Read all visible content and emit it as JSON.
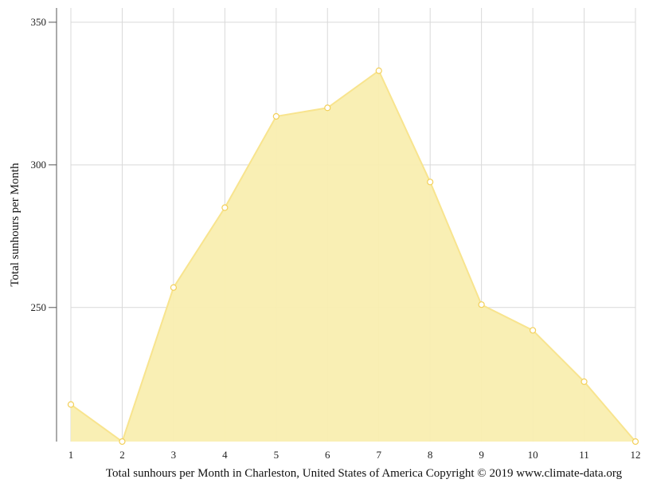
{
  "chart_data": {
    "type": "area",
    "x": [
      1,
      2,
      3,
      4,
      5,
      6,
      7,
      8,
      9,
      10,
      11,
      12
    ],
    "x_tick_labels": [
      "1",
      "2",
      "3",
      "4",
      "5",
      "6",
      "7",
      "8",
      "9",
      "10",
      "11",
      "12"
    ],
    "series": [
      {
        "values": [
          216,
          203,
          257,
          285,
          317,
          320,
          333,
          294,
          251,
          242,
          224,
          203
        ]
      }
    ],
    "ylabel": "Total sunhours per Month",
    "y_ticks": [
      250,
      300,
      350
    ],
    "y_tick_labels": [
      "250",
      "300",
      "350"
    ],
    "ylim": [
      203,
      355
    ],
    "xlim": [
      1,
      12
    ],
    "grid": true,
    "caption": "Total sunhours per Month in Charleston, United States of America Copyright © 2019 www.climate-data.org",
    "colors": {
      "fill": "#f9eeb0",
      "line": "#f8e48e",
      "marker_stroke": "#f3d05a",
      "marker_fill": "#ffffff",
      "grid": "#d9d9d9",
      "axis": "#555555"
    }
  }
}
